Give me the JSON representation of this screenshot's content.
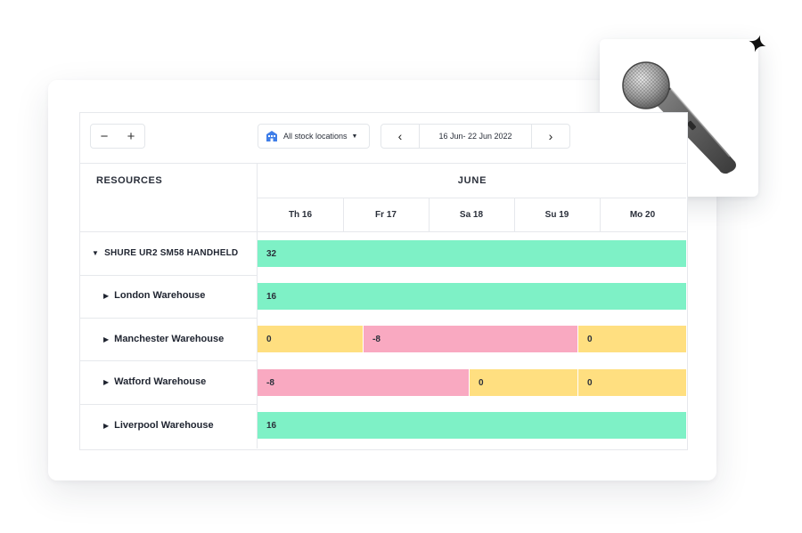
{
  "toolbar": {
    "zoom_out": "−",
    "zoom_in": "+",
    "location_label": "All stock locations",
    "location_caret": "▼",
    "prev_icon": "‹",
    "next_icon": "›",
    "date_range": "16 Jun- 22 Jun 2022"
  },
  "header": {
    "resources_label": "RESOURCES",
    "month": "JUNE",
    "days": [
      "Th 16",
      "Fr 17",
      "Sa 18",
      "Su 19",
      "Mo 20"
    ]
  },
  "rows": [
    {
      "label": "SHURE UR2 SM58 HANDHELD",
      "expanded": true,
      "bars": [
        {
          "value": "32",
          "status": "available"
        }
      ]
    },
    {
      "label": "London Warehouse",
      "expanded": false,
      "bars": [
        {
          "value": "16",
          "status": "available"
        }
      ]
    },
    {
      "label": "Manchester Warehouse",
      "expanded": false,
      "bars": [
        {
          "value": "0",
          "status": "empty"
        },
        {
          "value": "-8",
          "status": "shortage"
        },
        {
          "value": "0",
          "status": "empty"
        }
      ]
    },
    {
      "label": "Watford Warehouse",
      "expanded": false,
      "bars": [
        {
          "value": "-8",
          "status": "shortage"
        },
        {
          "value": "0",
          "status": "empty"
        },
        {
          "value": "0",
          "status": "empty"
        }
      ]
    },
    {
      "label": "Liverpool Warehouse",
      "expanded": false,
      "bars": [
        {
          "value": "16",
          "status": "available"
        }
      ]
    }
  ],
  "colors": {
    "available": "#7ef1c6",
    "empty": "#ffdf80",
    "shortage": "#f9a9c1",
    "location_icon": "#3f7ee8"
  },
  "icons": {
    "location": "warehouse-building-icon",
    "expand_open": "triangle-down-icon",
    "expand_closed": "triangle-right-icon",
    "product": "microphone-image",
    "decor": "sparkle-icon"
  }
}
